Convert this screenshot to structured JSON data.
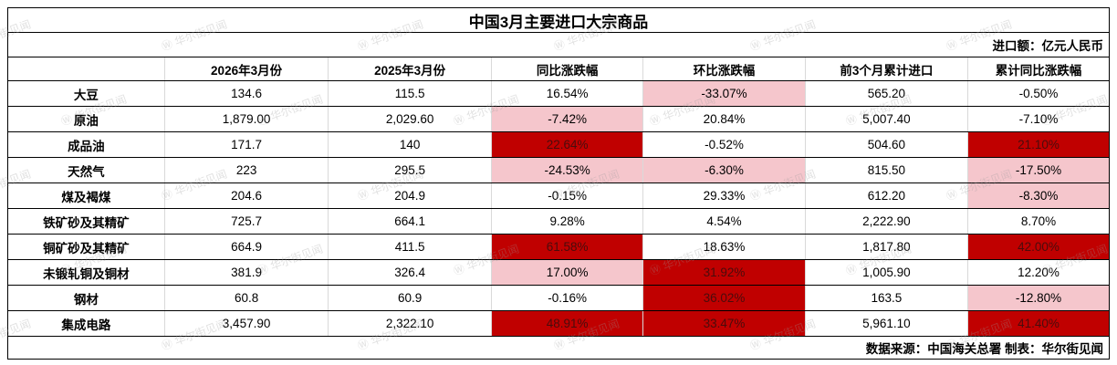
{
  "title": "中国3月主要进口大宗商品",
  "subtitle": "进口额：亿元人民币",
  "footer": "数据来源：中国海关总署 制表：华尔街见闻",
  "watermark_text": "Ⓦ 华尔街见闻",
  "colors": {
    "strong_highlight_bg": "#C00000",
    "strong_highlight_text": "#4A0C0C",
    "light_highlight_bg": "#F5C6CC",
    "border_dark": "#000000",
    "border_light": "#D9D9D9",
    "text": "#000000"
  },
  "chart_data": {
    "type": "table",
    "columns": [
      "",
      "2026年3月份",
      "2025年3月份",
      "同比涨跌幅",
      "环比涨跌幅",
      "前3个月累计进口",
      "累计同比涨跌幅"
    ],
    "rows": [
      {
        "label": "大豆",
        "values": [
          "134.6",
          "115.5",
          "16.54%",
          "-33.07%",
          "565.20",
          "-0.50%"
        ],
        "styles": [
          "none",
          "none",
          "none",
          "light",
          "none",
          "none"
        ]
      },
      {
        "label": "原油",
        "values": [
          "1,879.00",
          "2,029.60",
          "-7.42%",
          "20.84%",
          "5,007.40",
          "-7.10%"
        ],
        "styles": [
          "none",
          "none",
          "light",
          "none",
          "none",
          "none"
        ]
      },
      {
        "label": "成品油",
        "values": [
          "171.7",
          "140",
          "22.64%",
          "-0.52%",
          "504.60",
          "21.10%"
        ],
        "styles": [
          "none",
          "none",
          "strong",
          "none",
          "none",
          "strong"
        ]
      },
      {
        "label": "天然气",
        "values": [
          "223",
          "295.5",
          "-24.53%",
          "-6.30%",
          "815.50",
          "-17.50%"
        ],
        "styles": [
          "none",
          "none",
          "light",
          "light",
          "none",
          "light"
        ]
      },
      {
        "label": "煤及褐煤",
        "values": [
          "204.6",
          "204.9",
          "-0.15%",
          "29.33%",
          "612.20",
          "-8.30%"
        ],
        "styles": [
          "none",
          "none",
          "none",
          "none",
          "none",
          "light"
        ]
      },
      {
        "label": "铁矿砂及其精矿",
        "values": [
          "725.7",
          "664.1",
          "9.28%",
          "4.54%",
          "2,222.90",
          "8.70%"
        ],
        "styles": [
          "none",
          "none",
          "none",
          "none",
          "none",
          "none"
        ]
      },
      {
        "label": "铜矿砂及其精矿",
        "values": [
          "664.9",
          "411.5",
          "61.58%",
          "18.63%",
          "1,817.80",
          "42.00%"
        ],
        "styles": [
          "none",
          "none",
          "strong",
          "none",
          "none",
          "strong"
        ]
      },
      {
        "label": "未锻轧铜及铜材",
        "values": [
          "381.9",
          "326.4",
          "17.00%",
          "31.92%",
          "1,005.90",
          "12.20%"
        ],
        "styles": [
          "none",
          "none",
          "light",
          "strong",
          "none",
          "none"
        ]
      },
      {
        "label": "钢材",
        "values": [
          "60.8",
          "60.9",
          "-0.16%",
          "36.02%",
          "163.5",
          "-12.80%"
        ],
        "styles": [
          "none",
          "none",
          "none",
          "strong",
          "none",
          "light"
        ]
      },
      {
        "label": "集成电路",
        "values": [
          "3,457.90",
          "2,322.10",
          "48.91%",
          "33.47%",
          "5,961.10",
          "41.40%"
        ],
        "styles": [
          "none",
          "none",
          "strong",
          "strong",
          "none",
          "strong"
        ]
      }
    ]
  }
}
